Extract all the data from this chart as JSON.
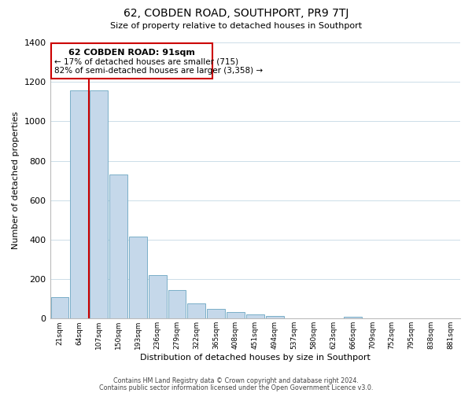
{
  "title": "62, COBDEN ROAD, SOUTHPORT, PR9 7TJ",
  "subtitle": "Size of property relative to detached houses in Southport",
  "xlabel": "Distribution of detached houses by size in Southport",
  "ylabel": "Number of detached properties",
  "bar_labels": [
    "21sqm",
    "64sqm",
    "107sqm",
    "150sqm",
    "193sqm",
    "236sqm",
    "279sqm",
    "322sqm",
    "365sqm",
    "408sqm",
    "451sqm",
    "494sqm",
    "537sqm",
    "580sqm",
    "623sqm",
    "666sqm",
    "709sqm",
    "752sqm",
    "795sqm",
    "838sqm",
    "881sqm"
  ],
  "bar_values": [
    110,
    1155,
    1155,
    730,
    415,
    220,
    145,
    75,
    50,
    35,
    20,
    15,
    0,
    0,
    0,
    10,
    0,
    0,
    0,
    0,
    0
  ],
  "bar_color": "#c5d8ea",
  "bar_edge_color": "#7aafc8",
  "vline_color": "#cc0000",
  "annotation_text_line1": "62 COBDEN ROAD: 91sqm",
  "annotation_text_line2": "← 17% of detached houses are smaller (715)",
  "annotation_text_line3": "82% of semi-detached houses are larger (3,358) →",
  "box_edge_color": "#cc0000",
  "ylim": [
    0,
    1400
  ],
  "yticks": [
    0,
    200,
    400,
    600,
    800,
    1000,
    1200,
    1400
  ],
  "footer_line1": "Contains HM Land Registry data © Crown copyright and database right 2024.",
  "footer_line2": "Contains public sector information licensed under the Open Government Licence v3.0.",
  "background_color": "#ffffff",
  "grid_color": "#ccdde8"
}
